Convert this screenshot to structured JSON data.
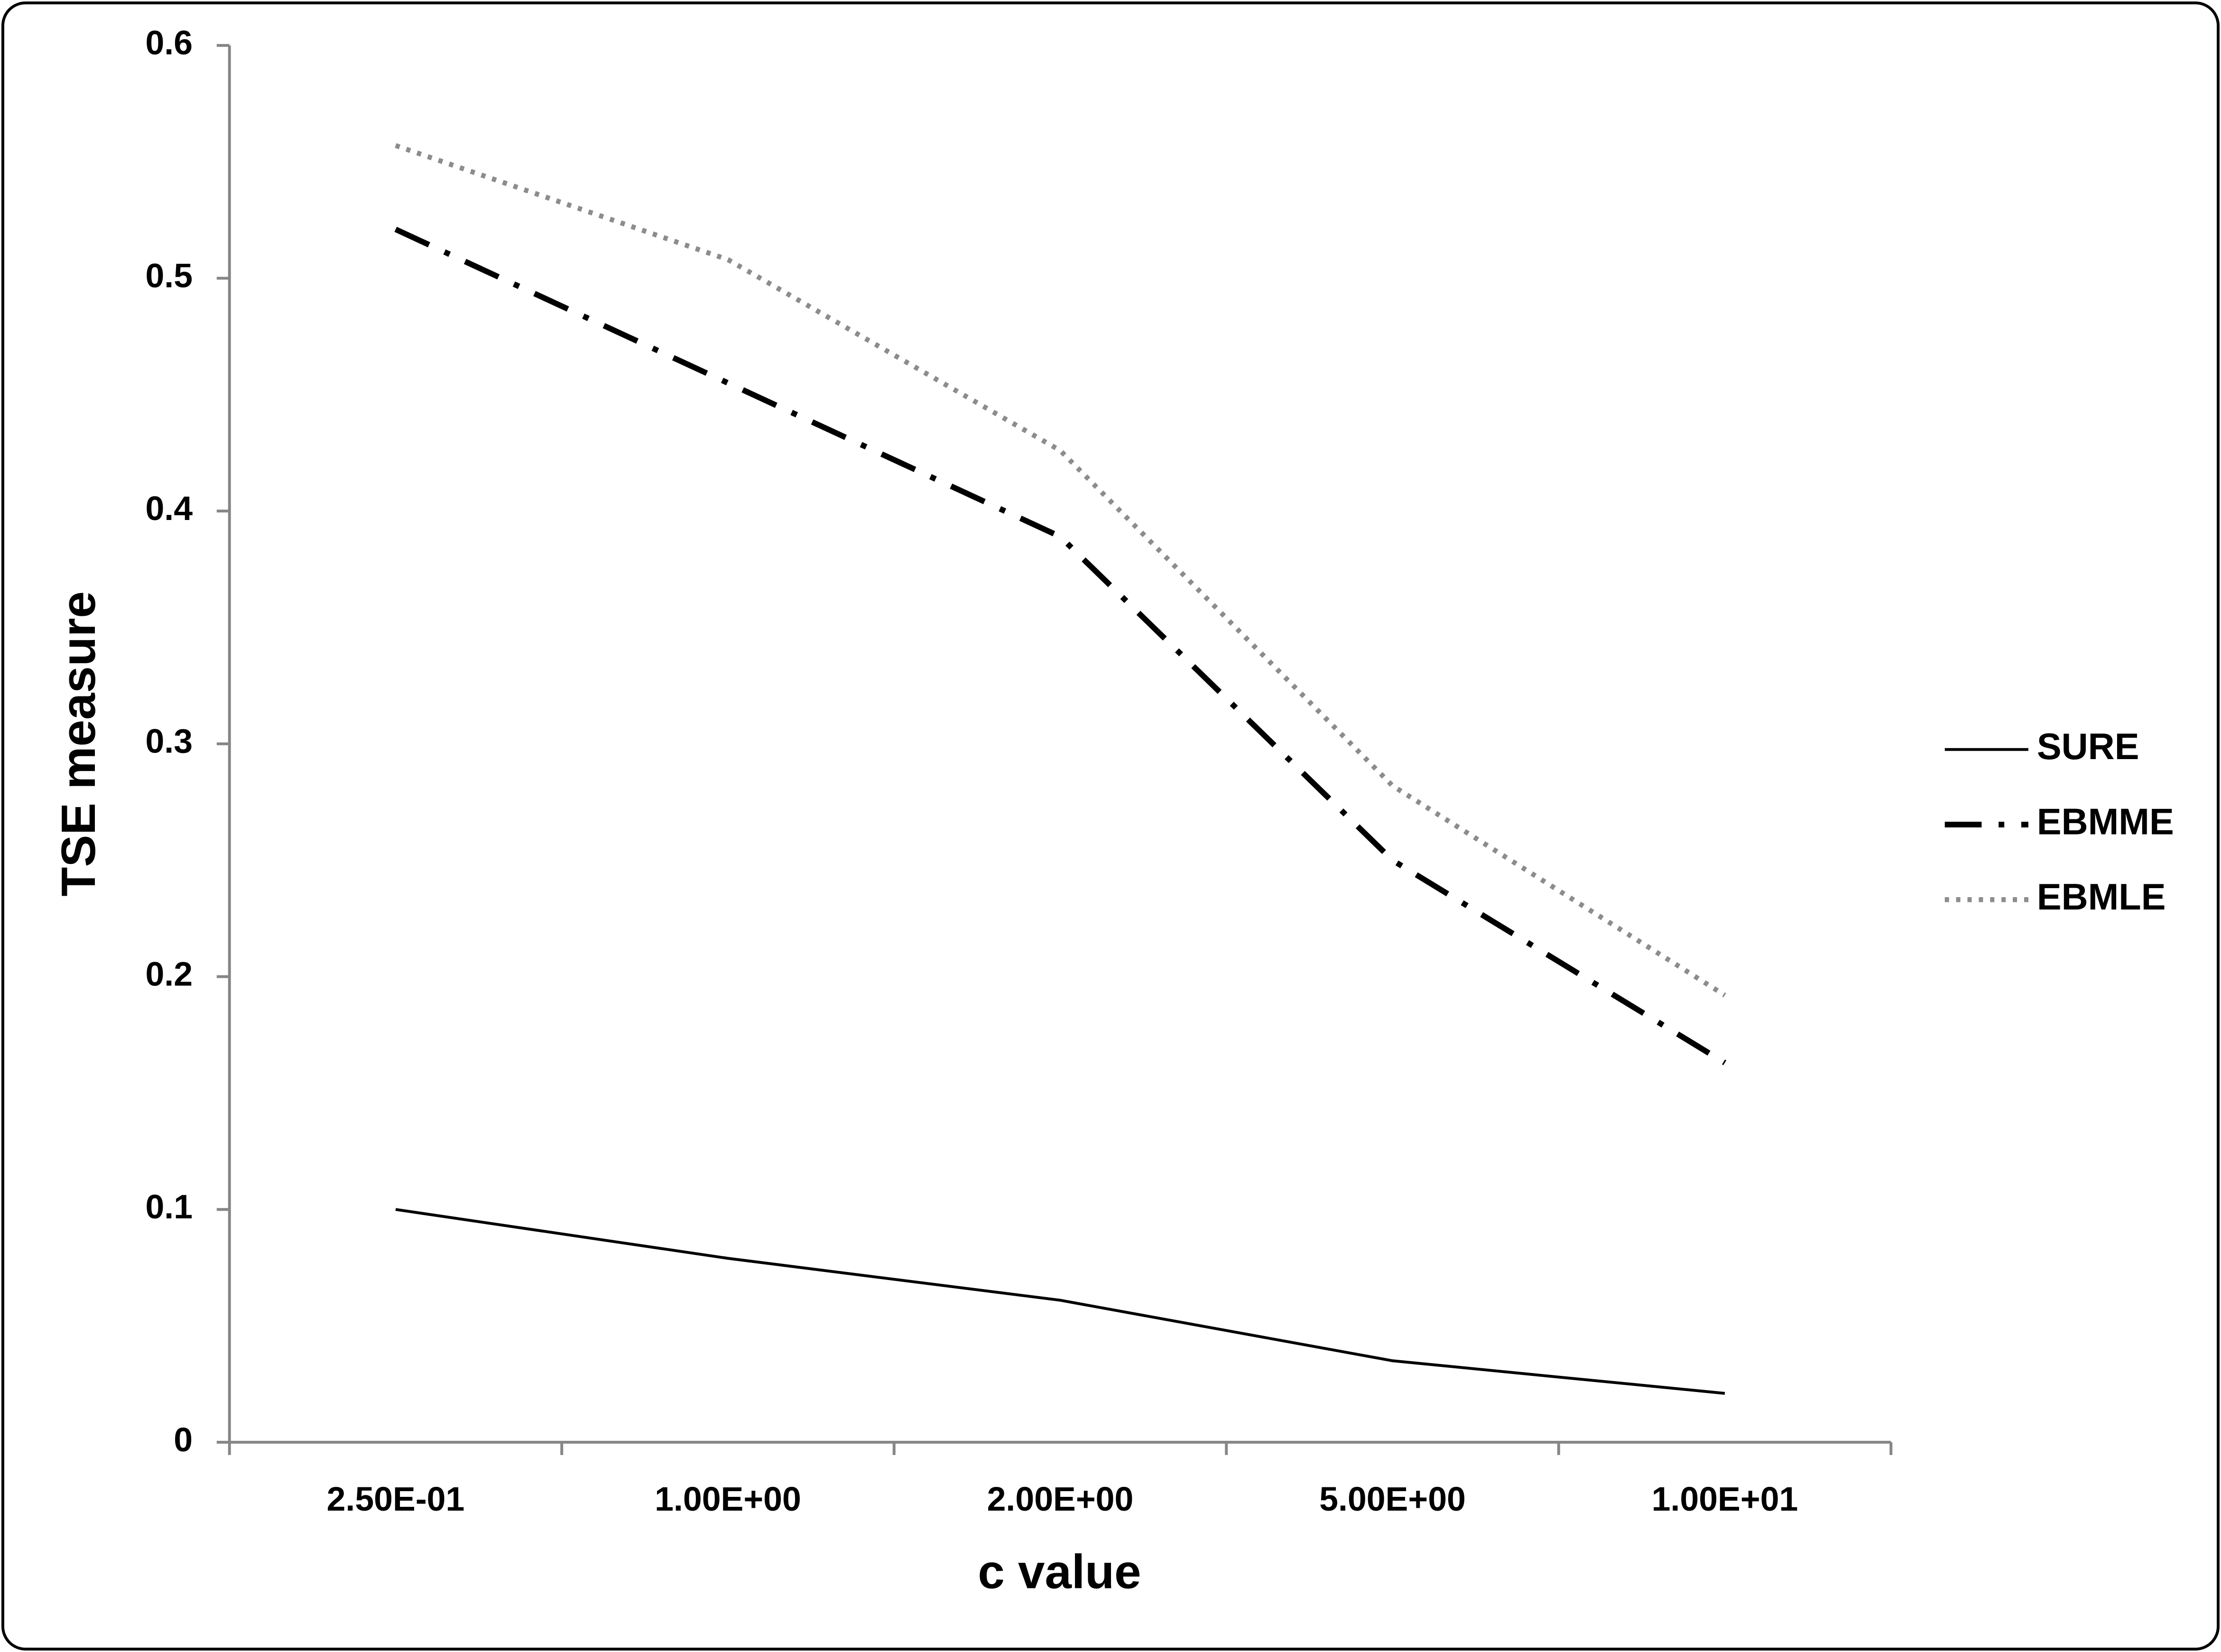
{
  "chart_data": {
    "type": "line",
    "x_label": "c value",
    "y_label": "TSE measure",
    "categories": [
      "2.50E-01",
      "1.00E+00",
      "2.00E+00",
      "5.00E+00",
      "1.00E+01"
    ],
    "series": [
      {
        "name": "SURE",
        "color": "#000000",
        "dash": "solid",
        "values": [
          0.1,
          0.079,
          0.061,
          0.035,
          0.021
        ]
      },
      {
        "name": "EBMME",
        "color": "#000000",
        "dash": "dash-dot",
        "values": [
          0.521,
          0.455,
          0.389,
          0.25,
          0.163
        ]
      },
      {
        "name": "EBMLE",
        "color": "#8c8c8c",
        "dash": "dotted",
        "values": [
          0.557,
          0.508,
          0.426,
          0.282,
          0.192
        ]
      }
    ],
    "ylim": [
      0,
      0.6
    ],
    "yticks": [
      0,
      0.1,
      0.2,
      0.3,
      0.4,
      0.5,
      0.6
    ],
    "grid": false,
    "legend": "right"
  }
}
